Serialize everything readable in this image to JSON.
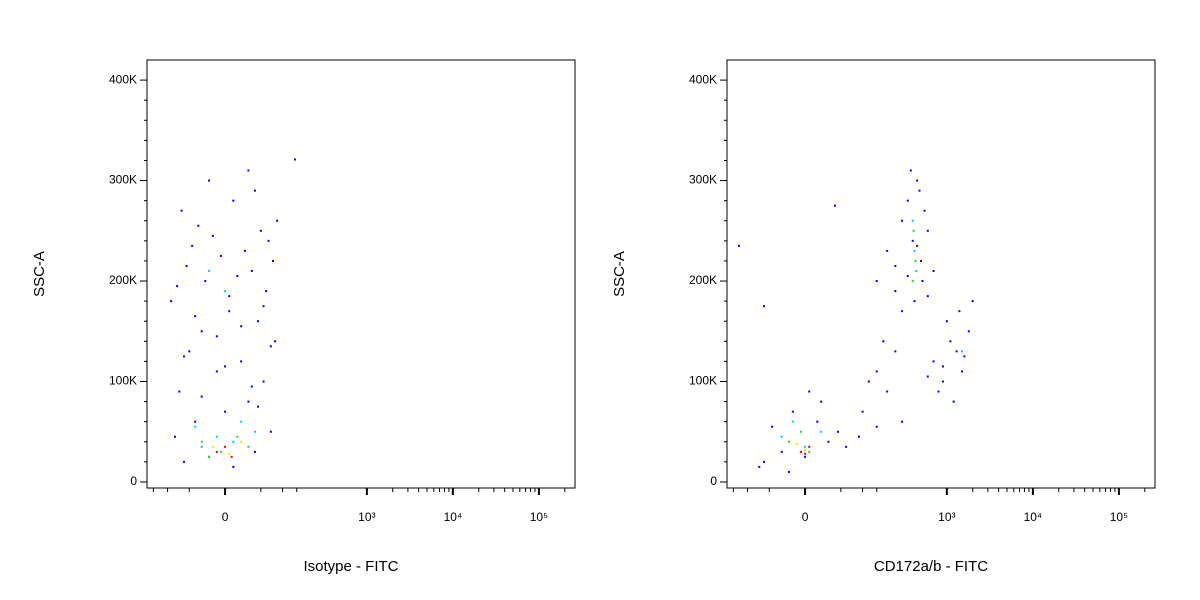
{
  "chart_data": [
    {
      "type": "scatter",
      "xlabel": "Isotype - FITC",
      "ylabel": "SSC-A",
      "xscale": "biexponential",
      "xlim": [
        -179,
        262800
      ],
      "ylim": [
        -6000,
        420000
      ],
      "xticks": [
        0,
        {
          "value": 1000,
          "label": "10³"
        },
        {
          "value": 10000,
          "label": "10⁴"
        },
        {
          "value": 100000,
          "label": "10⁵"
        }
      ],
      "xminorticks": [
        -150,
        -100,
        -50,
        50,
        100,
        150,
        2000,
        3000,
        4000,
        5000,
        6000,
        7000,
        8000,
        9000,
        20000,
        30000,
        40000,
        50000,
        60000,
        70000,
        80000,
        90000,
        200000
      ],
      "yticks": [
        0,
        {
          "value": 100000,
          "label": "100K"
        },
        {
          "value": 200000,
          "label": "200K"
        },
        {
          "value": 300000,
          "label": "300K"
        },
        {
          "value": 400000,
          "label": "400K"
        }
      ],
      "yminorticks": [
        20000,
        40000,
        60000,
        80000,
        120000,
        140000,
        160000,
        180000,
        220000,
        240000,
        260000,
        280000,
        320000,
        340000,
        360000,
        380000
      ],
      "series": [
        {
          "color": "#0000ff",
          "x": [
            -60,
            -20,
            10,
            40,
            -80,
            70,
            -40,
            0,
            30,
            -70,
            55,
            -10,
            20,
            -50,
            80,
            -30,
            45,
            5,
            -90,
            60,
            -25,
            15,
            35,
            -55,
            75,
            -5,
            25,
            -45,
            65,
            -15,
            50,
            -35,
            85,
            -65,
            10,
            40,
            -20,
            30,
            -75,
            5,
            55,
            -40,
            20,
            -10,
            70,
            -60,
            0,
            35,
            -30,
            45,
            143
          ],
          "values": [
            20000,
            25000,
            15000,
            30000,
            45000,
            50000,
            60000,
            70000,
            80000,
            90000,
            100000,
            110000,
            120000,
            130000,
            140000,
            150000,
            160000,
            170000,
            180000,
            190000,
            200000,
            205000,
            210000,
            215000,
            220000,
            225000,
            230000,
            235000,
            240000,
            245000,
            250000,
            255000,
            260000,
            270000,
            280000,
            290000,
            300000,
            310000,
            195000,
            185000,
            175000,
            165000,
            155000,
            145000,
            135000,
            125000,
            115000,
            95000,
            85000,
            75000,
            321000
          ]
        },
        {
          "color": "#00c8ff",
          "x": [
            -40,
            -10,
            20,
            40,
            -30,
            10,
            -20,
            0
          ],
          "values": [
            55000,
            45000,
            60000,
            50000,
            35000,
            40000,
            210000,
            190000
          ]
        },
        {
          "color": "#30d030",
          "x": [
            -30,
            -5,
            15,
            30,
            -20
          ],
          "values": [
            40000,
            30000,
            45000,
            35000,
            25000
          ]
        },
        {
          "color": "#e8e800",
          "x": [
            -15,
            5,
            20
          ],
          "values": [
            35000,
            28000,
            40000
          ]
        },
        {
          "color": "#ff0000",
          "x": [
            -10,
            0,
            8
          ],
          "values": [
            30000,
            35000,
            25000
          ]
        }
      ]
    },
    {
      "type": "scatter",
      "xlabel": "CD172a/b - FITC",
      "ylabel": "SSC-A",
      "xscale": "biexponential",
      "xlim": [
        -179,
        262800
      ],
      "ylim": [
        -6000,
        420000
      ],
      "xticks": [
        0,
        {
          "value": 1000,
          "label": "10³"
        },
        {
          "value": 10000,
          "label": "10⁴"
        },
        {
          "value": 100000,
          "label": "10⁵"
        }
      ],
      "xminorticks": [
        -150,
        -100,
        -50,
        50,
        100,
        150,
        2000,
        3000,
        4000,
        5000,
        6000,
        7000,
        8000,
        9000,
        20000,
        30000,
        40000,
        50000,
        60000,
        70000,
        80000,
        90000,
        200000
      ],
      "yticks": [
        0,
        {
          "value": 100000,
          "label": "100K"
        },
        {
          "value": 200000,
          "label": "200K"
        },
        {
          "value": 300000,
          "label": "300K"
        },
        {
          "value": 400000,
          "label": "400K"
        }
      ],
      "yminorticks": [
        20000,
        40000,
        60000,
        80000,
        120000,
        140000,
        160000,
        180000,
        220000,
        240000,
        260000,
        280000,
        320000,
        340000,
        360000,
        380000
      ],
      "series": [
        {
          "color": "#0000ff",
          "x": [
            -60,
            -30,
            0,
            30,
            60,
            -45,
            15,
            -15,
            45,
            -70,
            20,
            90,
            150,
            -20,
            5,
            150,
            200,
            250,
            300,
            350,
            400,
            450,
            500,
            550,
            600,
            700,
            300,
            380,
            420,
            480,
            520,
            250,
            350,
            450,
            600,
            700,
            900,
            1100,
            1300,
            1500,
            1800,
            2000,
            800,
            1000,
            1200,
            1400,
            1600,
            600,
            900,
            100,
            150,
            200,
            250,
            300,
            120,
            180,
            -128,
            -60,
            40
          ],
          "values": [
            20000,
            30000,
            25000,
            40000,
            35000,
            55000,
            60000,
            70000,
            50000,
            15000,
            80000,
            45000,
            55000,
            10000,
            90000,
            200000,
            230000,
            190000,
            260000,
            280000,
            240000,
            300000,
            220000,
            270000,
            250000,
            210000,
            170000,
            310000,
            180000,
            290000,
            200000,
            215000,
            205000,
            235000,
            185000,
            120000,
            100000,
            140000,
            130000,
            110000,
            150000,
            180000,
            90000,
            160000,
            80000,
            170000,
            125000,
            105000,
            115000,
            70000,
            110000,
            90000,
            130000,
            60000,
            100000,
            140000,
            235000,
            175000,
            275000
          ]
        },
        {
          "color": "#00c8ff",
          "x": [
            -30,
            0,
            20,
            -15,
            400,
            420,
            440,
            1500
          ],
          "values": [
            45000,
            35000,
            50000,
            60000,
            260000,
            230000,
            210000,
            130000
          ]
        },
        {
          "color": "#30d030",
          "x": [
            -20,
            5,
            -5,
            410,
            430,
            400
          ],
          "values": [
            40000,
            30000,
            50000,
            250000,
            220000,
            200000
          ]
        },
        {
          "color": "#e8e800",
          "x": [
            -10,
            0
          ],
          "values": [
            38000,
            32000
          ]
        },
        {
          "color": "#ff0000",
          "x": [
            -5,
            5,
            0
          ],
          "values": [
            30000,
            35000,
            28000
          ]
        }
      ]
    }
  ]
}
